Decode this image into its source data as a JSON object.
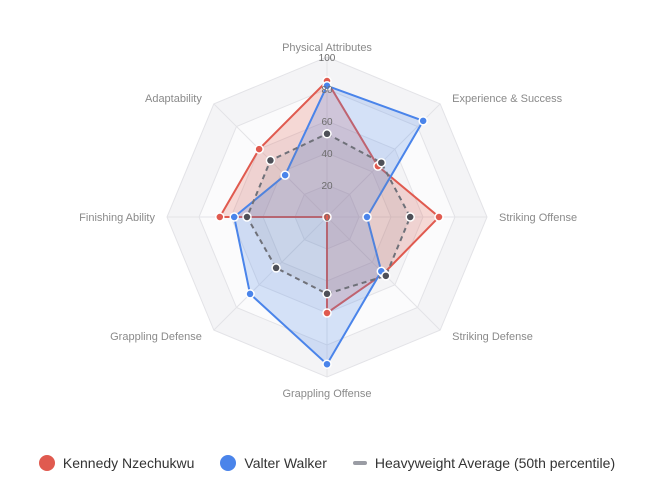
{
  "chart_data": {
    "type": "radar",
    "axes": [
      "Physical Attributes",
      "Experience & Success",
      "Striking Offense",
      "Striking Defense",
      "Grappling Offense",
      "Grappling Defense",
      "Finishing Ability",
      "Adaptability"
    ],
    "rlim": [
      0,
      100
    ],
    "ticks": [
      0,
      20,
      40,
      60,
      80,
      100
    ],
    "series": [
      {
        "name": "Kennedy Nzechukwu",
        "values": [
          85,
          45,
          70,
          50,
          60,
          0,
          67,
          60
        ],
        "color": "#e05a4f",
        "style": "solid"
      },
      {
        "name": "Valter Walker",
        "values": [
          82,
          85,
          25,
          48,
          92,
          68,
          58,
          37
        ],
        "color": "#4a84ea",
        "style": "solid"
      },
      {
        "name": "Heavyweight Average (50th percentile)",
        "values": [
          52,
          48,
          52,
          52,
          48,
          45,
          50,
          50
        ],
        "color": "#7a7d86",
        "style": "dashed"
      }
    ],
    "legend_position": "bottom"
  }
}
